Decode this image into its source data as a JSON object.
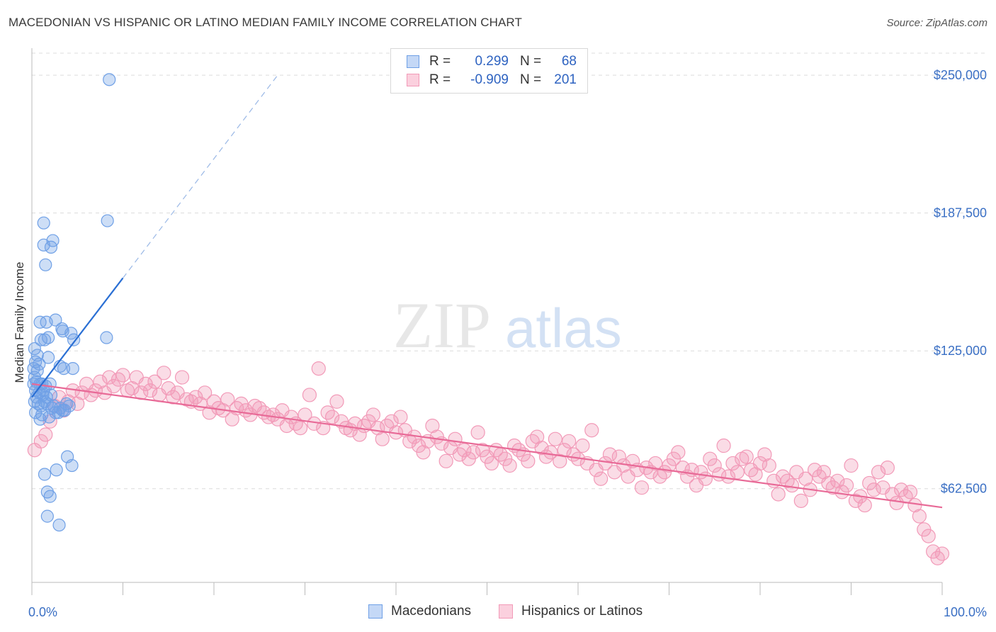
{
  "chart_data": {
    "type": "scatter",
    "title": "MACEDONIAN VS HISPANIC OR LATINO MEDIAN FAMILY INCOME CORRELATION CHART",
    "source": "Source: ZipAtlas.com",
    "ylabel": "Median Family Income",
    "xlabel": "",
    "xlim": [
      0,
      100
    ],
    "ylim": [
      20000,
      260000
    ],
    "x_tick_labels": [
      "0.0%",
      "100.0%"
    ],
    "y_ticks": [
      62500,
      125000,
      187500,
      250000
    ],
    "y_tick_labels": [
      "$62,500",
      "$125,000",
      "$187,500",
      "$250,000"
    ],
    "grid": true,
    "legend_position": "top-center",
    "colors": {
      "macedonians": "#6fa0e6",
      "hispanics": "#f29ab8",
      "blue_line": "#2a6fd4",
      "pink_line": "#e86a97"
    },
    "legend": [
      {
        "r_label": "R =",
        "r_value": "0.299",
        "n_label": "N =",
        "n_value": "68"
      },
      {
        "r_label": "R =",
        "r_value": "-0.909",
        "n_label": "N =",
        "n_value": "201"
      }
    ],
    "series": [
      {
        "name": "Macedonians",
        "trend": {
          "x": [
            0,
            10
          ],
          "y": [
            104000,
            158000
          ],
          "dashed_to": [
            27,
            250000
          ]
        },
        "points": [
          [
            8.5,
            248000
          ],
          [
            8.3,
            184000
          ],
          [
            1.3,
            183000
          ],
          [
            2.3,
            175000
          ],
          [
            1.3,
            173000
          ],
          [
            2.1,
            172000
          ],
          [
            1.5,
            164000
          ],
          [
            0.9,
            138000
          ],
          [
            1.6,
            138000
          ],
          [
            2.6,
            139000
          ],
          [
            3.3,
            135000
          ],
          [
            4.3,
            133000
          ],
          [
            1.0,
            130000
          ],
          [
            1.4,
            130000
          ],
          [
            1.8,
            131000
          ],
          [
            3.4,
            134000
          ],
          [
            4.6,
            130000
          ],
          [
            8.2,
            131000
          ],
          [
            0.3,
            126000
          ],
          [
            0.6,
            123000
          ],
          [
            1.8,
            122000
          ],
          [
            0.4,
            120000
          ],
          [
            0.8,
            119000
          ],
          [
            0.2,
            117000
          ],
          [
            0.6,
            116000
          ],
          [
            3.1,
            118000
          ],
          [
            3.5,
            117000
          ],
          [
            4.5,
            117000
          ],
          [
            0.3,
            113000
          ],
          [
            0.5,
            111000
          ],
          [
            0.9,
            110000
          ],
          [
            1.1,
            110000
          ],
          [
            1.5,
            109000
          ],
          [
            2.0,
            110000
          ],
          [
            0.4,
            107000
          ],
          [
            0.8,
            106000
          ],
          [
            1.2,
            105000
          ],
          [
            1.6,
            104000
          ],
          [
            2.1,
            105000
          ],
          [
            0.3,
            102000
          ],
          [
            0.7,
            101000
          ],
          [
            1.0,
            100000
          ],
          [
            1.4,
            102000
          ],
          [
            2.4,
            100000
          ],
          [
            3.1,
            99000
          ],
          [
            3.6,
            98000
          ],
          [
            4.1,
            100000
          ],
          [
            0.4,
            97000
          ],
          [
            1.1,
            96000
          ],
          [
            1.9,
            95000
          ],
          [
            2.6,
            97000
          ],
          [
            3.4,
            98000
          ],
          [
            2.2,
            99000
          ],
          [
            1.7,
            101000
          ],
          [
            0.9,
            94000
          ],
          [
            2.9,
            97000
          ],
          [
            3.8,
            101000
          ],
          [
            0.5,
            104000
          ],
          [
            1.3,
            107000
          ],
          [
            0.2,
            110000
          ],
          [
            3.9,
            77000
          ],
          [
            4.4,
            73000
          ],
          [
            2.7,
            71000
          ],
          [
            1.4,
            69000
          ],
          [
            1.7,
            61000
          ],
          [
            2.0,
            59000
          ],
          [
            1.7,
            50000
          ],
          [
            3.0,
            46000
          ]
        ]
      },
      {
        "name": "Hispanics or Latinos",
        "trend": {
          "x": [
            0,
            100
          ],
          "y": [
            110000,
            54000
          ]
        },
        "points": [
          [
            0.3,
            80000
          ],
          [
            1.0,
            84000
          ],
          [
            1.5,
            87000
          ],
          [
            2.0,
            93000
          ],
          [
            2.5,
            100000
          ],
          [
            3.0,
            104000
          ],
          [
            3.5,
            98000
          ],
          [
            4.0,
            102000
          ],
          [
            4.5,
            107000
          ],
          [
            5.0,
            101000
          ],
          [
            5.5,
            106000
          ],
          [
            6.0,
            110000
          ],
          [
            6.5,
            105000
          ],
          [
            7.0,
            107000
          ],
          [
            7.5,
            111000
          ],
          [
            8.0,
            106000
          ],
          [
            8.5,
            113000
          ],
          [
            9.0,
            109000
          ],
          [
            9.5,
            112000
          ],
          [
            10.0,
            114000
          ],
          [
            10.5,
            107000
          ],
          [
            11.0,
            108000
          ],
          [
            11.5,
            113000
          ],
          [
            12.0,
            106000
          ],
          [
            12.5,
            110000
          ],
          [
            13.0,
            107000
          ],
          [
            13.5,
            111000
          ],
          [
            14.0,
            105000
          ],
          [
            14.5,
            115000
          ],
          [
            15.0,
            108000
          ],
          [
            15.5,
            104000
          ],
          [
            16.0,
            106000
          ],
          [
            16.5,
            113000
          ],
          [
            17.0,
            103000
          ],
          [
            17.5,
            102000
          ],
          [
            18.0,
            104000
          ],
          [
            18.5,
            101000
          ],
          [
            19.0,
            106000
          ],
          [
            19.5,
            97000
          ],
          [
            20.0,
            102000
          ],
          [
            20.5,
            99000
          ],
          [
            21.0,
            98000
          ],
          [
            21.5,
            103000
          ],
          [
            22.0,
            94000
          ],
          [
            22.5,
            99000
          ],
          [
            23.0,
            101000
          ],
          [
            23.5,
            98000
          ],
          [
            24.0,
            96000
          ],
          [
            24.5,
            100000
          ],
          [
            25.0,
            99000
          ],
          [
            25.5,
            97000
          ],
          [
            26.0,
            95000
          ],
          [
            26.5,
            96000
          ],
          [
            27.0,
            94000
          ],
          [
            27.5,
            98000
          ],
          [
            28.0,
            91000
          ],
          [
            28.5,
            95000
          ],
          [
            29.0,
            92000
          ],
          [
            29.5,
            90000
          ],
          [
            30.0,
            96000
          ],
          [
            30.5,
            105000
          ],
          [
            31.0,
            92000
          ],
          [
            31.5,
            117000
          ],
          [
            32.0,
            90000
          ],
          [
            32.5,
            97000
          ],
          [
            33.0,
            95000
          ],
          [
            33.5,
            102000
          ],
          [
            34.0,
            93000
          ],
          [
            34.5,
            90000
          ],
          [
            35.0,
            89000
          ],
          [
            35.5,
            92000
          ],
          [
            36.0,
            87000
          ],
          [
            36.5,
            91000
          ],
          [
            37.0,
            93000
          ],
          [
            37.5,
            96000
          ],
          [
            38.0,
            90000
          ],
          [
            38.5,
            85000
          ],
          [
            39.0,
            91000
          ],
          [
            39.5,
            93000
          ],
          [
            40.0,
            88000
          ],
          [
            40.5,
            95000
          ],
          [
            41.0,
            89000
          ],
          [
            41.5,
            84000
          ],
          [
            42.0,
            86000
          ],
          [
            42.5,
            82000
          ],
          [
            43.0,
            79000
          ],
          [
            43.5,
            84000
          ],
          [
            44.0,
            91000
          ],
          [
            44.5,
            86000
          ],
          [
            45.0,
            83000
          ],
          [
            45.5,
            75000
          ],
          [
            46.0,
            81000
          ],
          [
            46.5,
            85000
          ],
          [
            47.0,
            78000
          ],
          [
            47.5,
            80000
          ],
          [
            48.0,
            76000
          ],
          [
            48.5,
            79000
          ],
          [
            49.0,
            88000
          ],
          [
            49.5,
            80000
          ],
          [
            50.0,
            77000
          ],
          [
            50.5,
            74000
          ],
          [
            51.0,
            80000
          ],
          [
            51.5,
            78000
          ],
          [
            52.0,
            76000
          ],
          [
            52.5,
            73000
          ],
          [
            53.0,
            82000
          ],
          [
            53.5,
            80000
          ],
          [
            54.0,
            78000
          ],
          [
            54.5,
            75000
          ],
          [
            55.0,
            84000
          ],
          [
            55.5,
            86000
          ],
          [
            56.0,
            81000
          ],
          [
            56.5,
            77000
          ],
          [
            57.0,
            79000
          ],
          [
            57.5,
            85000
          ],
          [
            58.0,
            75000
          ],
          [
            58.5,
            80000
          ],
          [
            59.0,
            84000
          ],
          [
            59.5,
            78000
          ],
          [
            60.0,
            76000
          ],
          [
            60.5,
            82000
          ],
          [
            61.0,
            74000
          ],
          [
            61.5,
            89000
          ],
          [
            62.0,
            71000
          ],
          [
            62.5,
            67000
          ],
          [
            63.0,
            74000
          ],
          [
            63.5,
            78000
          ],
          [
            64.0,
            70000
          ],
          [
            64.5,
            77000
          ],
          [
            65.0,
            73000
          ],
          [
            65.5,
            68000
          ],
          [
            66.0,
            75000
          ],
          [
            66.5,
            71000
          ],
          [
            67.0,
            63000
          ],
          [
            67.5,
            72000
          ],
          [
            68.0,
            70000
          ],
          [
            68.5,
            74000
          ],
          [
            69.0,
            68000
          ],
          [
            69.5,
            70000
          ],
          [
            70.0,
            73000
          ],
          [
            70.5,
            76000
          ],
          [
            71.0,
            79000
          ],
          [
            71.5,
            72000
          ],
          [
            72.0,
            68000
          ],
          [
            72.5,
            71000
          ],
          [
            73.0,
            64000
          ],
          [
            73.5,
            70000
          ],
          [
            74.0,
            67000
          ],
          [
            74.5,
            76000
          ],
          [
            75.0,
            73000
          ],
          [
            75.5,
            69000
          ],
          [
            76.0,
            82000
          ],
          [
            76.5,
            68000
          ],
          [
            77.0,
            74000
          ],
          [
            77.5,
            70000
          ],
          [
            78.0,
            76000
          ],
          [
            78.5,
            77000
          ],
          [
            79.0,
            71000
          ],
          [
            79.5,
            69000
          ],
          [
            80.0,
            74000
          ],
          [
            80.5,
            78000
          ],
          [
            81.0,
            73000
          ],
          [
            81.5,
            66000
          ],
          [
            82.0,
            60000
          ],
          [
            82.5,
            68000
          ],
          [
            83.0,
            66000
          ],
          [
            83.5,
            64000
          ],
          [
            84.0,
            70000
          ],
          [
            84.5,
            57000
          ],
          [
            85.0,
            67000
          ],
          [
            85.5,
            62000
          ],
          [
            86.0,
            71000
          ],
          [
            86.5,
            68000
          ],
          [
            87.0,
            70000
          ],
          [
            87.5,
            65000
          ],
          [
            88.0,
            63000
          ],
          [
            88.5,
            66000
          ],
          [
            89.0,
            61000
          ],
          [
            89.5,
            64000
          ],
          [
            90.0,
            73000
          ],
          [
            90.5,
            57000
          ],
          [
            91.0,
            59000
          ],
          [
            91.5,
            55000
          ],
          [
            92.0,
            65000
          ],
          [
            92.5,
            62000
          ],
          [
            93.0,
            70000
          ],
          [
            93.5,
            63000
          ],
          [
            94.0,
            72000
          ],
          [
            94.5,
            60000
          ],
          [
            95.0,
            56000
          ],
          [
            95.5,
            62000
          ],
          [
            96.0,
            59000
          ],
          [
            96.5,
            61000
          ],
          [
            97.0,
            55000
          ],
          [
            97.5,
            50000
          ],
          [
            98.0,
            44000
          ],
          [
            98.5,
            41000
          ],
          [
            99.0,
            34000
          ],
          [
            99.5,
            31000
          ],
          [
            100.0,
            33000
          ]
        ]
      }
    ]
  },
  "watermark": {
    "part1": "ZIP",
    "part2": "atlas"
  },
  "bottom_legend": [
    "Macedonians",
    "Hispanics or Latinos"
  ]
}
